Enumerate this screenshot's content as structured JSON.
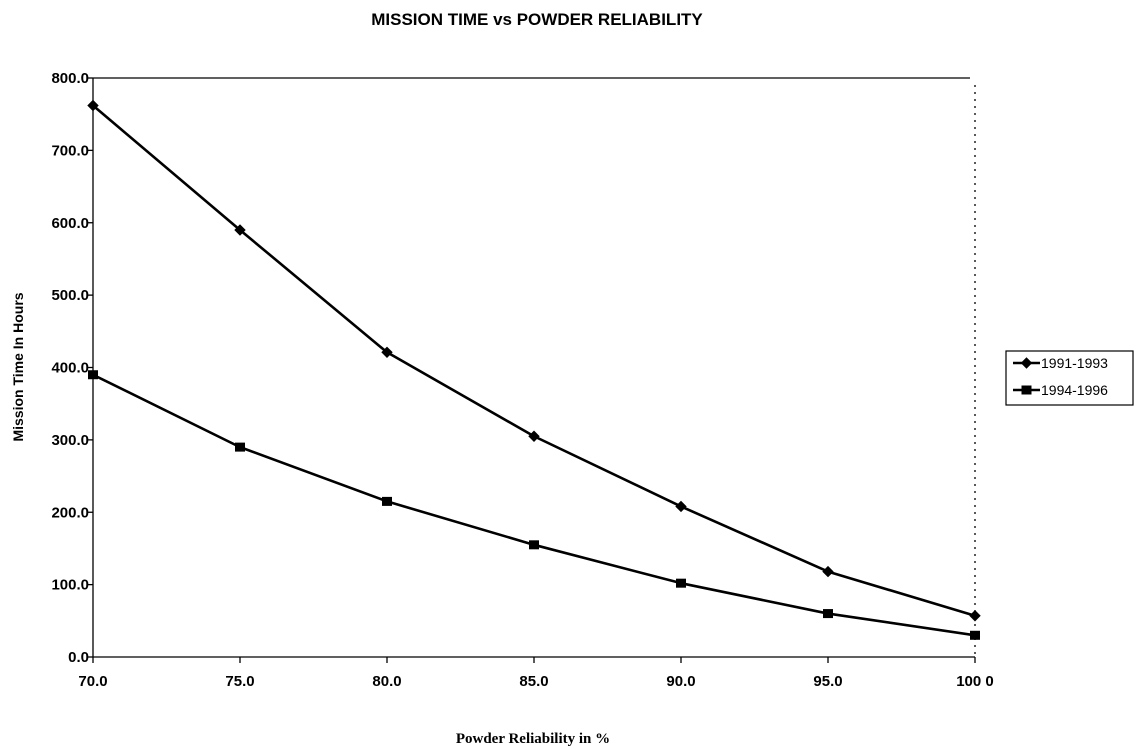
{
  "chart_data": {
    "type": "line",
    "title": "MISSION TIME vs POWDER RELIABILITY",
    "xlabel": "Powder Reliability in %",
    "ylabel": "Mission Time In Hours",
    "x": [
      70,
      75,
      80,
      85,
      90,
      95,
      100
    ],
    "x_tick_labels": [
      "70.0",
      "75.0",
      "80.0",
      "85.0",
      "90.0",
      "95.0",
      "100 0"
    ],
    "y_tick_labels": [
      "0.0",
      "100.0",
      "200.0",
      "300.0",
      "400.0",
      "500.0",
      "600.0",
      "700.0",
      "800.0"
    ],
    "y_ticks": [
      0,
      100,
      200,
      300,
      400,
      500,
      600,
      700,
      800
    ],
    "xlim": [
      70,
      100
    ],
    "ylim": [
      0,
      800
    ],
    "grid": false,
    "legend_position": "right",
    "series": [
      {
        "name": "1991-1993",
        "marker": "diamond",
        "values": [
          762,
          590,
          421,
          305,
          208,
          118,
          57
        ]
      },
      {
        "name": "1994-1996",
        "marker": "square",
        "values": [
          390,
          290,
          215,
          155,
          102,
          60,
          30
        ]
      }
    ]
  }
}
